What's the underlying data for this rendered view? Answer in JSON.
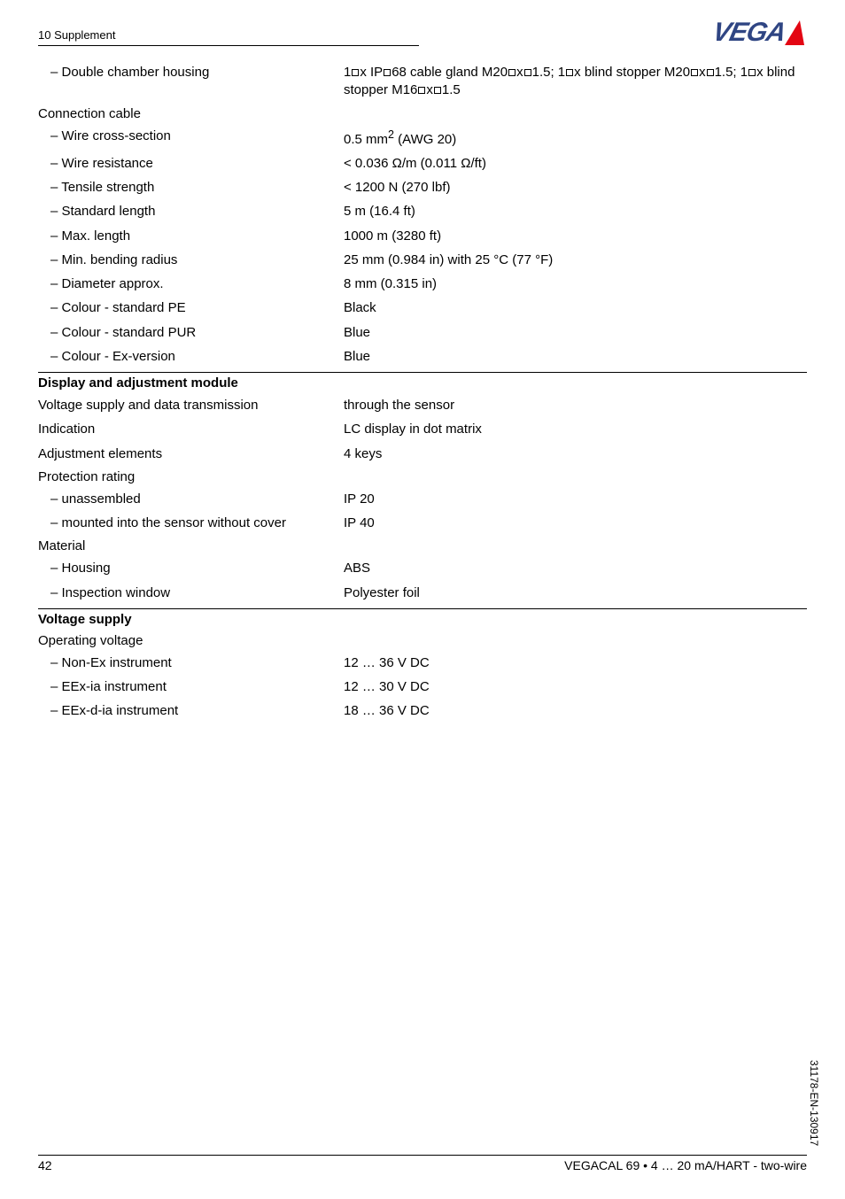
{
  "header_section_label": "10 Supplement",
  "logo_text": "VEGA",
  "section1": {
    "row1": {
      "label": "– Double chamber housing",
      "value_html": "1[x] IP[]68 cable gland M20[x][]1.5; 1[x] blind stopper M20[x][]1.5; 1[x] blind stopper M16[x][]1.5"
    },
    "group_title": "Connection cable",
    "rows": [
      {
        "label": "– Wire cross-section",
        "value_html": "0.5 mm<sup>2</sup> (AWG 20)"
      },
      {
        "label": "– Wire resistance",
        "value": "< 0.036 Ω/m (0.011 Ω/ft)"
      },
      {
        "label": "– Tensile strength",
        "value": "< 1200 N (270 lbf)"
      },
      {
        "label": "– Standard length",
        "value": "5 m (16.4 ft)"
      },
      {
        "label": "– Max. length",
        "value": "1000 m (3280 ft)"
      },
      {
        "label": "– Min. bending radius",
        "value": "25 mm (0.984 in) with 25 °C (77 °F)"
      },
      {
        "label": "– Diameter approx.",
        "value": "8 mm (0.315 in)"
      },
      {
        "label": "– Colour - standard PE",
        "value": "Black"
      },
      {
        "label": "– Colour - standard PUR",
        "value": "Blue"
      },
      {
        "label": "– Colour - Ex-version",
        "value": "Blue"
      }
    ]
  },
  "section2": {
    "heading": "Display and adjustment module",
    "rows_a": [
      {
        "label": "Voltage supply and data transmission",
        "value": "through the sensor"
      },
      {
        "label": "Indication",
        "value": "LC display in dot matrix"
      },
      {
        "label": "Adjustment elements",
        "value": "4 keys"
      }
    ],
    "group_title_a": "Protection rating",
    "rows_b": [
      {
        "label": "– unassembled",
        "value": "IP 20"
      },
      {
        "label": "– mounted into the sensor without cover",
        "value": "IP 40"
      }
    ],
    "group_title_b": "Material",
    "rows_c": [
      {
        "label": "– Housing",
        "value": "ABS"
      },
      {
        "label": "– Inspection window",
        "value": "Polyester foil"
      }
    ]
  },
  "section3": {
    "heading": "Voltage supply",
    "group_title": "Operating voltage",
    "rows": [
      {
        "label": "– Non-Ex instrument",
        "value": "12 … 36 V DC"
      },
      {
        "label": "– EEx-ia instrument",
        "value": "12 … 30 V DC"
      },
      {
        "label": "– EEx-d-ia instrument",
        "value": "18 … 36 V DC"
      }
    ]
  },
  "footer": {
    "page_number": "42",
    "doc_title": "VEGACAL 69 • 4 … 20 mA/HART - two-wire",
    "side_code": "31178-EN-130917"
  },
  "colors": {
    "text": "#000000",
    "background": "#ffffff",
    "logo_blue": "#2f4583",
    "logo_red": "#e30613"
  },
  "typography": {
    "body_font_size": 15,
    "header_font_size": 13,
    "footer_font_size": 14
  }
}
